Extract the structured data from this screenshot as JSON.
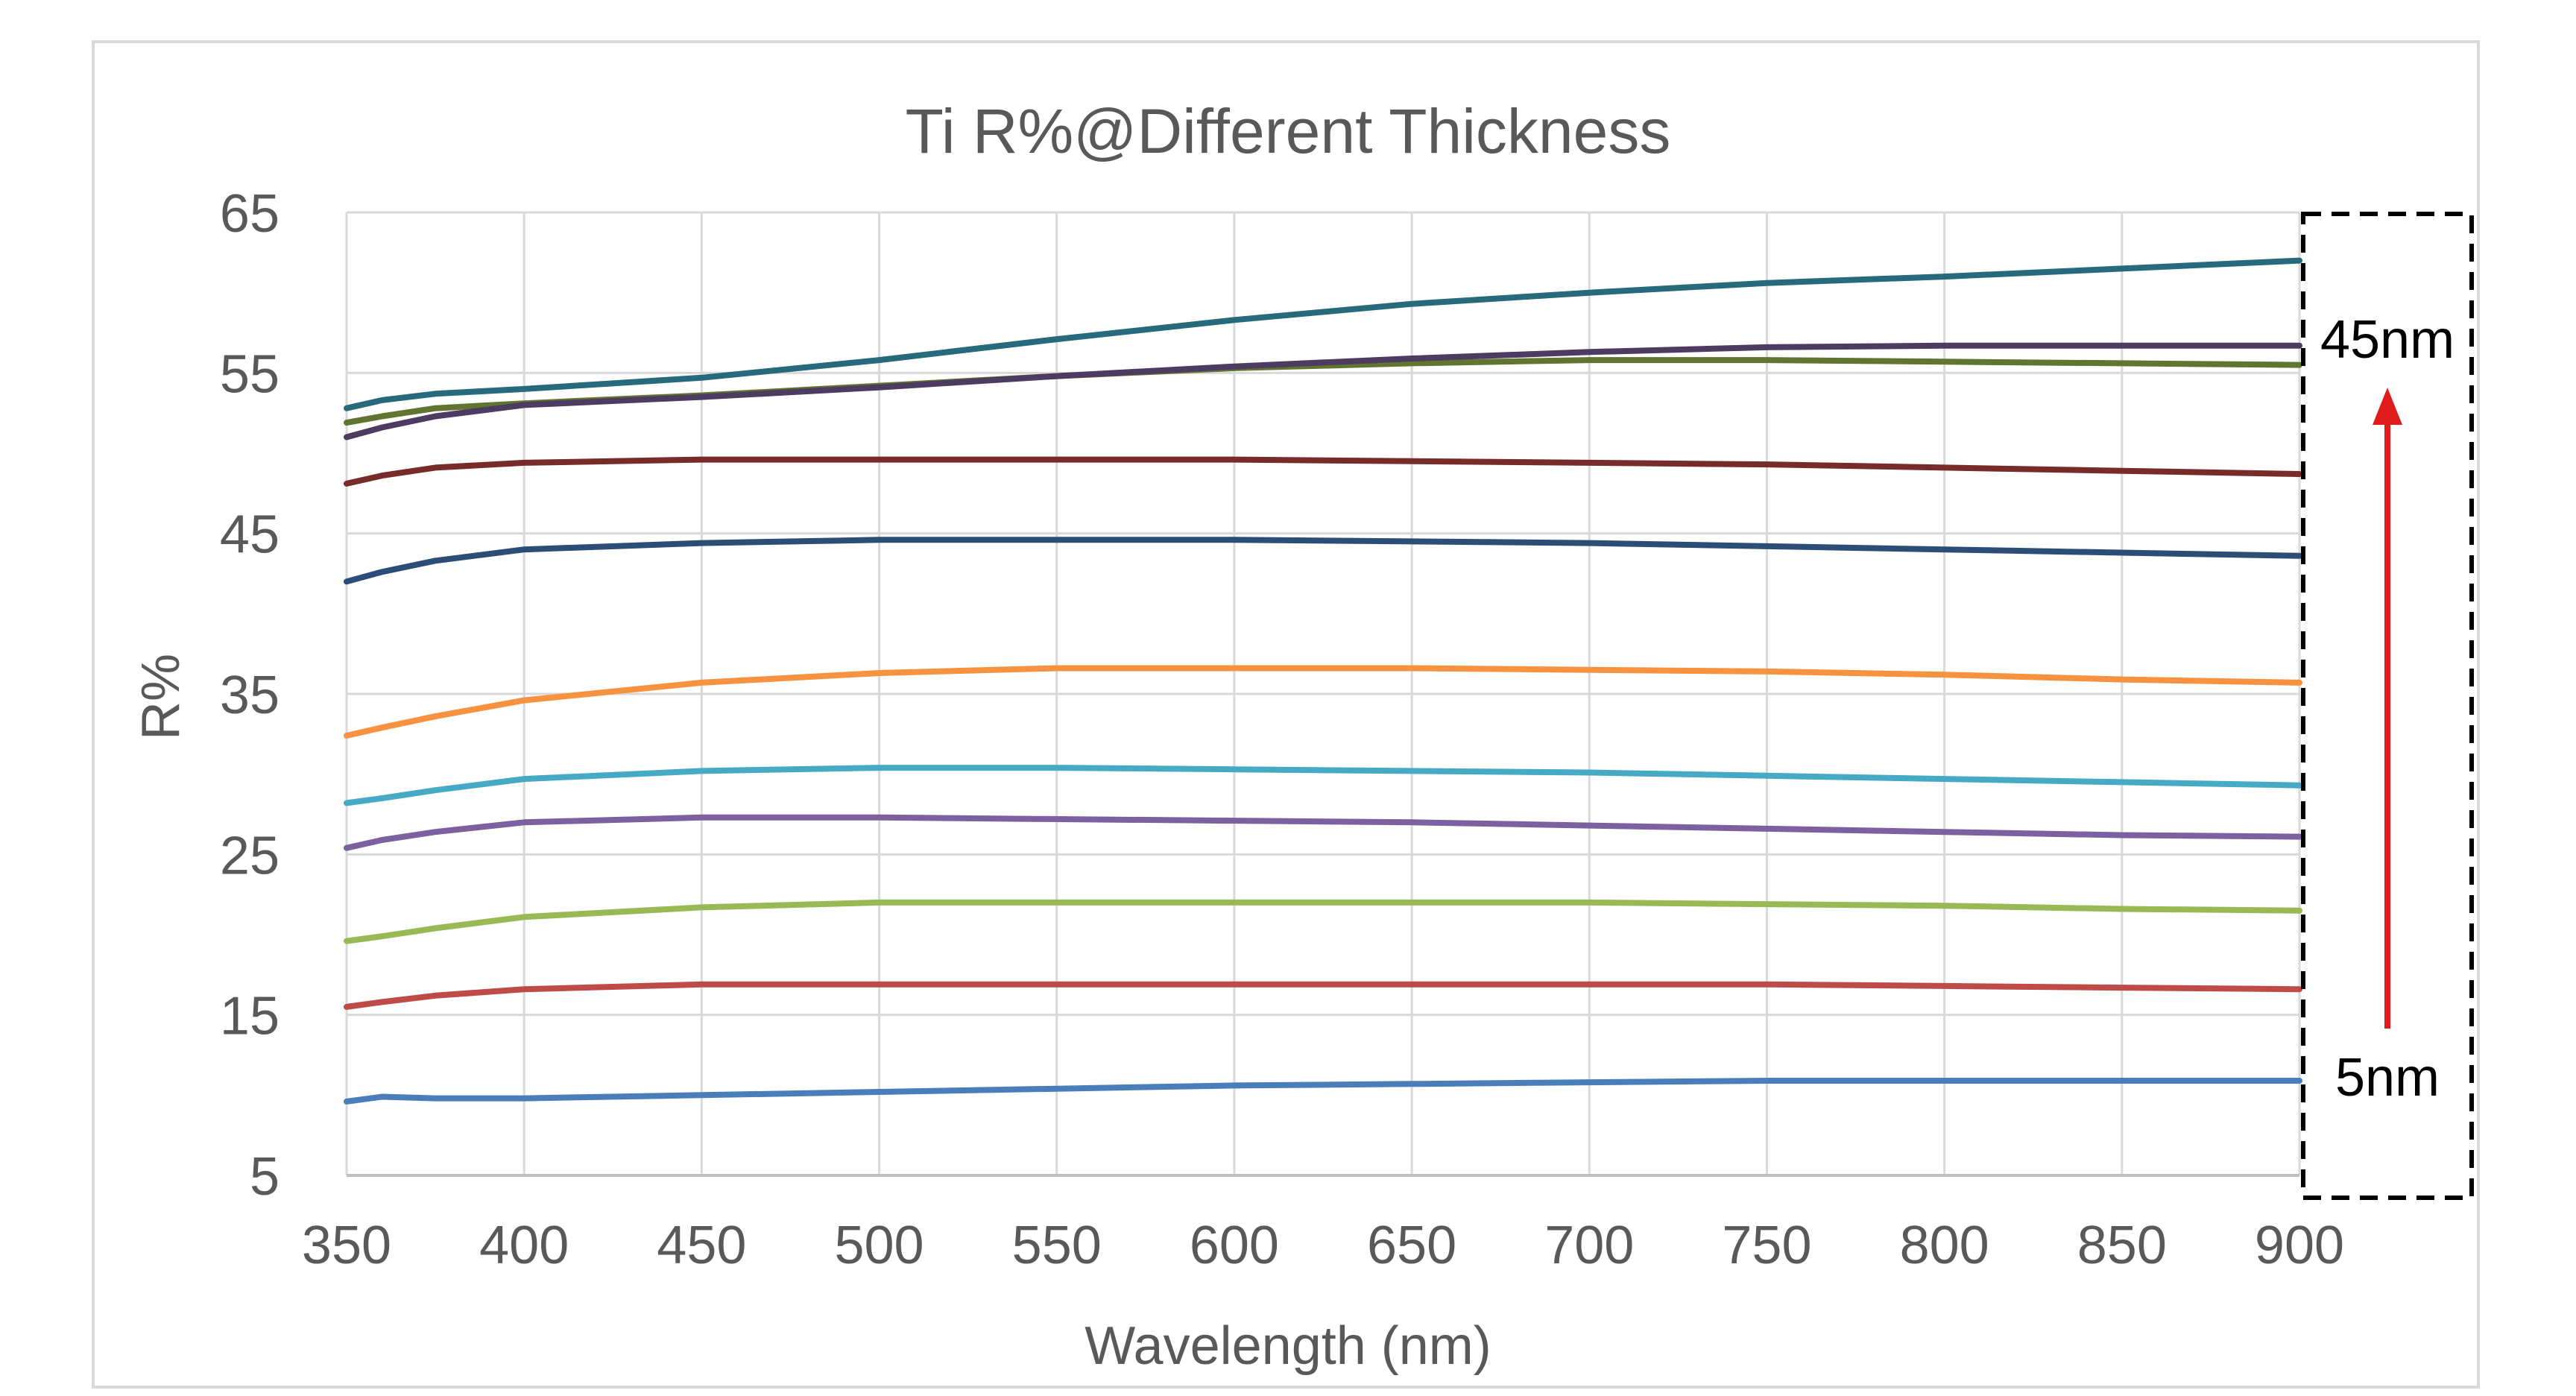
{
  "chart_data": {
    "type": "line",
    "title": "Ti R%@Different Thickness",
    "xlabel": "Wavelength (nm)",
    "ylabel": "R%",
    "xlim": [
      350,
      900
    ],
    "ylim": [
      5,
      65
    ],
    "x_ticks": [
      "350",
      "400",
      "450",
      "500",
      "550",
      "600",
      "650",
      "700",
      "750",
      "800",
      "850",
      "900"
    ],
    "y_ticks": [
      "5",
      "15",
      "25",
      "35",
      "45",
      "55",
      "65"
    ],
    "grid": true,
    "legend": "none",
    "x": [
      350,
      360,
      375,
      400,
      450,
      500,
      550,
      600,
      650,
      700,
      750,
      800,
      850,
      900
    ],
    "series": [
      {
        "color": "#4a7ebb",
        "values": [
          9.6,
          9.9,
          9.8,
          9.8,
          10.0,
          10.2,
          10.4,
          10.6,
          10.7,
          10.8,
          10.9,
          10.9,
          10.9,
          10.9
        ]
      },
      {
        "color": "#be4b48",
        "values": [
          15.5,
          15.8,
          16.2,
          16.6,
          16.9,
          16.9,
          16.9,
          16.9,
          16.9,
          16.9,
          16.9,
          16.8,
          16.7,
          16.6
        ]
      },
      {
        "color": "#98b954",
        "values": [
          19.6,
          19.9,
          20.4,
          21.1,
          21.7,
          22.0,
          22.0,
          22.0,
          22.0,
          22.0,
          21.9,
          21.8,
          21.6,
          21.5
        ]
      },
      {
        "color": "#7d60a0",
        "values": [
          25.4,
          25.9,
          26.4,
          27.0,
          27.3,
          27.3,
          27.2,
          27.1,
          27.0,
          26.8,
          26.6,
          26.4,
          26.2,
          26.1
        ]
      },
      {
        "color": "#46aac5",
        "values": [
          28.2,
          28.5,
          29.0,
          29.7,
          30.2,
          30.4,
          30.4,
          30.3,
          30.2,
          30.1,
          29.9,
          29.7,
          29.5,
          29.3
        ]
      },
      {
        "color": "#f69240",
        "values": [
          32.4,
          32.9,
          33.6,
          34.6,
          35.7,
          36.3,
          36.6,
          36.6,
          36.6,
          36.5,
          36.4,
          36.2,
          35.9,
          35.7
        ]
      },
      {
        "color": "#2c4d75",
        "values": [
          42.0,
          42.6,
          43.3,
          44.0,
          44.4,
          44.6,
          44.6,
          44.6,
          44.5,
          44.4,
          44.2,
          44.0,
          43.8,
          43.6
        ]
      },
      {
        "color": "#772c2a",
        "values": [
          48.1,
          48.6,
          49.1,
          49.4,
          49.6,
          49.6,
          49.6,
          49.6,
          49.5,
          49.4,
          49.3,
          49.1,
          48.9,
          48.7
        ]
      },
      {
        "color": "#5f7530",
        "values": [
          51.9,
          52.3,
          52.8,
          53.1,
          53.6,
          54.2,
          54.8,
          55.3,
          55.6,
          55.8,
          55.8,
          55.7,
          55.6,
          55.5
        ]
      },
      {
        "color": "#4d3b62",
        "values": [
          51.0,
          51.6,
          52.3,
          53.0,
          53.5,
          54.1,
          54.8,
          55.4,
          55.9,
          56.3,
          56.6,
          56.7,
          56.7,
          56.7
        ]
      },
      {
        "color": "#276a7c",
        "values": [
          52.8,
          53.3,
          53.7,
          54.0,
          54.7,
          55.8,
          57.1,
          58.3,
          59.3,
          60.0,
          60.6,
          61.0,
          61.5,
          62.0
        ]
      }
    ],
    "annotations": {
      "top_label": "45nm",
      "bottom_label": "5nm",
      "arrow_color": "#e01b1b"
    }
  }
}
